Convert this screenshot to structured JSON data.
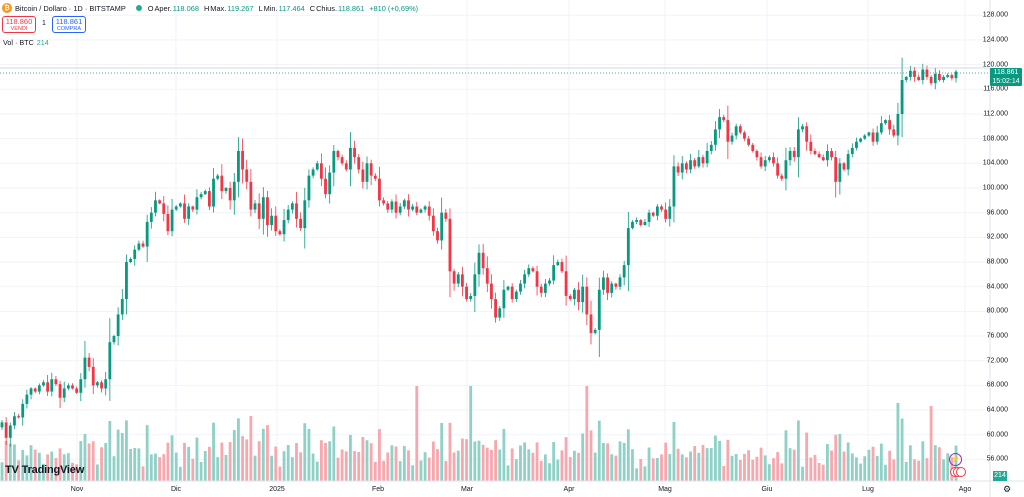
{
  "header": {
    "symbol": "Bitcoin / Dollaro · 1D · BITSTAMP",
    "open_label": "O",
    "open_text": "Aper.",
    "open": "118.068",
    "high_label": "H",
    "high_text": "Max.",
    "high": "119.267",
    "low_label": "L",
    "low_text": "Min.",
    "low": "117.464",
    "close_label": "C",
    "close_text": "Chius.",
    "close": "118.861",
    "change": "+810 (+0,69%)"
  },
  "trade": {
    "sell_price": "118.860",
    "sell_label": "VENDI",
    "spread": "1",
    "buy_price": "118.861",
    "buy_label": "COMPRA"
  },
  "volume_legend": {
    "label": "Vol · BTC",
    "value": "214"
  },
  "price_tag": {
    "price": "118.861",
    "countdown": "15:02:14"
  },
  "volume_tag": "214",
  "branding": {
    "logo_text": "TradingView"
  },
  "colors": {
    "up": "#089981",
    "down": "#f23645",
    "vol_up": "#8fd1c7",
    "vol_down": "#f7a8ae"
  },
  "chart_data": {
    "type": "candlestick",
    "title": "Bitcoin / Dollaro · 1D · BITSTAMP",
    "x_tick_labels": [
      "Nov",
      "Dic",
      "2025",
      "Feb",
      "Mar",
      "Apr",
      "Mag",
      "Giu",
      "Lug",
      "Ago"
    ],
    "y_tick_labels": [
      "56.000",
      "60.000",
      "64.000",
      "68.000",
      "72.000",
      "76.000",
      "80.000",
      "84.000",
      "88.000",
      "92.000",
      "96.000",
      "100.000",
      "104.000",
      "108.000",
      "112.000",
      "116.000",
      "120.000",
      "124.000",
      "128.000"
    ],
    "ylim": [
      52500,
      129500
    ],
    "grid": true,
    "daily_close": [
      [
        62000,
        59500,
        61500,
        63000,
        62800,
        65000,
        66500,
        67500,
        67000,
        68000,
        68500,
        67000,
        69000,
        68200,
        66000,
        67500,
        68000,
        67500,
        66800,
        69000,
        72500,
        71000,
        68000,
        68500,
        67500,
        69000,
        75000,
        76000,
        79500,
        82000,
        88000,
        88500,
        90000,
        91000,
        90500,
        94500,
        96000,
        98000,
        97500,
        95800,
        93000,
        96500,
        97000,
        97500,
        95000,
        97000,
        96500,
        98500,
        99000,
        99500,
        97000,
        101500,
        102000,
        99500,
        100000,
        98000,
        101000,
        106000,
        103000,
        101000
      ],
      [
        96500,
        97500,
        95000,
        98500,
        94000,
        95500,
        93000,
        92500,
        94800,
        96500,
        97500,
        95000,
        93500,
        98000,
        102000,
        103000,
        104000,
        101500,
        99000,
        102500,
        106000,
        105000,
        104000,
        103000,
        106500,
        105000,
        103000,
        101000,
        104000,
        102000,
        101500,
        98000,
        97500,
        96500,
        97800,
        96000,
        97000,
        98000,
        96500,
        97000,
        96000,
        96500,
        97000,
        95500,
        93000,
        91500,
        96000,
        95000,
        86500,
        84500,
        86000,
        84000,
        82000,
        82500,
        86000,
        89500,
        87000,
        84500,
        82000,
        79000
      ],
      [
        80500,
        83500,
        84000,
        82000,
        83200,
        84500,
        86000,
        87000,
        86500,
        84000,
        83000,
        84500,
        85000,
        87500,
        88000,
        86500,
        82500,
        82000,
        83500,
        81500,
        84000,
        79500,
        76500,
        77000,
        83500,
        85500,
        83000,
        84500,
        84000,
        85500,
        87500,
        93500,
        94500,
        94800,
        94000,
        94500,
        96000,
        95500,
        97000,
        96500,
        95000,
        97000,
        103500,
        102500,
        104000,
        103000,
        104500,
        103500,
        105000,
        104000,
        106000,
        107000,
        109500,
        111500,
        111000,
        107500,
        108500,
        110000,
        109000,
        108000
      ],
      [
        107000,
        106000,
        105000,
        103500,
        104500,
        105000,
        104000,
        102000,
        101500,
        104500,
        106000,
        105000,
        109500,
        110000,
        107500,
        106000,
        105500,
        105000,
        104500,
        106000,
        105000,
        101000,
        104000,
        103000,
        105500,
        106500,
        107500,
        108000,
        108500,
        109000,
        107500,
        109000,
        110500,
        111000,
        109500,
        108500,
        112000,
        117500,
        118000,
        119000,
        118000,
        117500,
        119200,
        118000,
        117000,
        118500,
        117500,
        118000,
        118300,
        117800,
        118861
      ]
    ],
    "volume_note": "Volume in BTC; latest bar 214"
  }
}
